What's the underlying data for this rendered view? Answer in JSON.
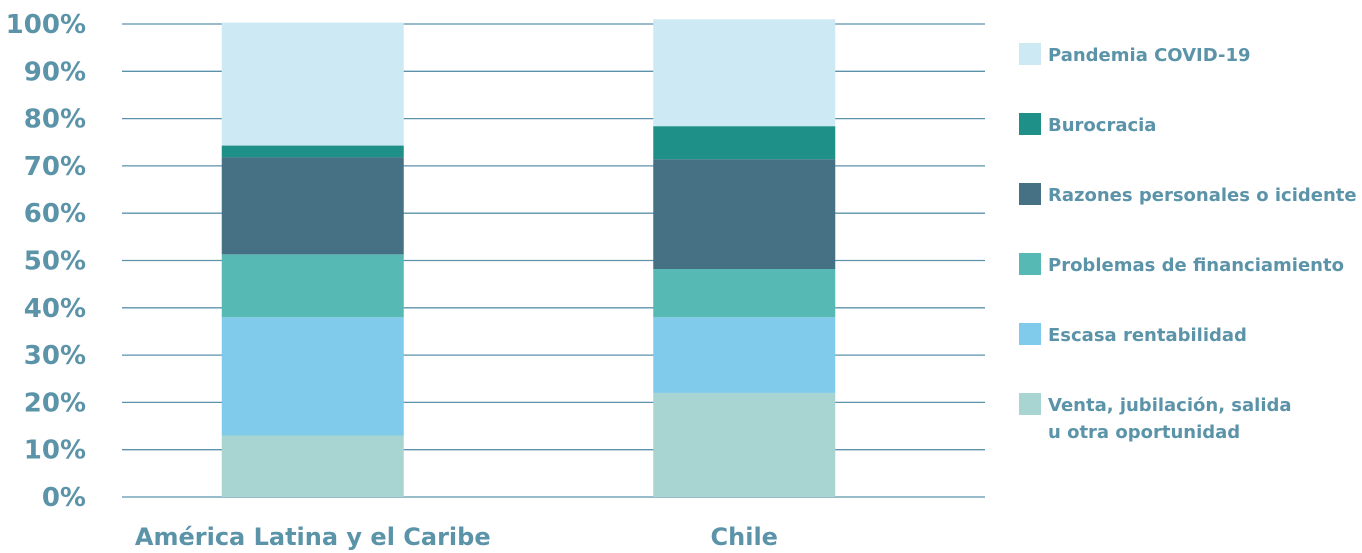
{
  "chart_data": {
    "type": "bar",
    "stacked": true,
    "categories": [
      "América Latina y el Caribe",
      "Chile"
    ],
    "ylim": [
      0,
      100
    ],
    "yticks": [
      "0%",
      "10%",
      "20%",
      "30%",
      "40%",
      "50%",
      "60%",
      "70%",
      "80%",
      "90%",
      "100%"
    ],
    "grid": true,
    "legend_position": "right",
    "series": [
      {
        "name": "Venta, jubilación, salida u otra oportunidad",
        "legend_lines": [
          "Venta, jubilación, salida",
          "u otra oportunidad"
        ],
        "color": "#a8d5d1",
        "values": [
          13,
          22
        ]
      },
      {
        "name": "Escasa rentabilidad",
        "legend_lines": [
          "Escasa rentabilidad"
        ],
        "color": "#80cbeb",
        "values": [
          25,
          16
        ]
      },
      {
        "name": "Problemas de financiamiento",
        "legend_lines": [
          "Problemas de financiamiento"
        ],
        "color": "#57b9b3",
        "values": [
          13.3,
          10.2
        ]
      },
      {
        "name": "Razones personales o icidente",
        "legend_lines": [
          "Razones personales o icidente"
        ],
        "color": "#467084",
        "values": [
          20.5,
          23.2
        ]
      },
      {
        "name": "Burocracia",
        "legend_lines": [
          "Burocracia"
        ],
        "color": "#1f9088",
        "values": [
          2.5,
          7
        ]
      },
      {
        "name": "Pandemia COVID-19",
        "legend_lines": [
          "Pandemia COVID-19"
        ],
        "color": "#cde9f4",
        "values": [
          26,
          22.6
        ]
      }
    ]
  }
}
